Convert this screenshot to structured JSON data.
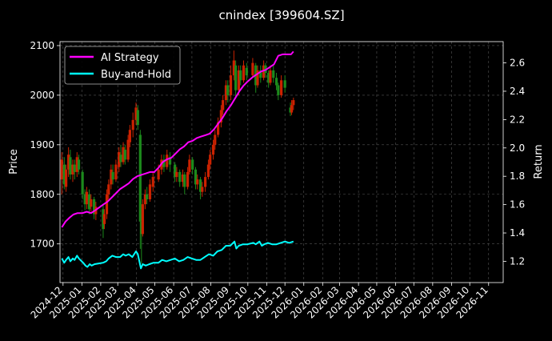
{
  "chart_data": {
    "type": "line",
    "title": "cnindex [399604.SZ]",
    "ylabel": "Price",
    "y2label": "Return",
    "grid": true,
    "legend_position": "top-left",
    "background": "#000000",
    "colors": {
      "ai_strategy": "#ff00ff",
      "buy_and_hold": "#00ffff",
      "candle_up": "#cc2200",
      "candle_down": "#1c8a1c",
      "grid": "#555555",
      "text": "#ffffff"
    },
    "xlim": [
      "2024-11-26",
      "2026-11-25"
    ],
    "ylim": [
      1622,
      2108
    ],
    "y2lim": [
      1.05,
      2.75
    ],
    "xticks": [
      "2024-12",
      "2025-01",
      "2025-02",
      "2025-03",
      "2025-04",
      "2025-05",
      "2025-06",
      "2025-07",
      "2025-08",
      "2025-09",
      "2025-10",
      "2025-11",
      "2025-12",
      "2026-01",
      "2026-02",
      "2026-03",
      "2026-04",
      "2026-05",
      "2026-06",
      "2026-07",
      "2026-08",
      "2026-09",
      "2026-10",
      "2026-11"
    ],
    "yticks": [
      1700,
      1800,
      1900,
      2000,
      2100
    ],
    "y2ticks": [
      1.2,
      1.4,
      1.6,
      1.8,
      2.0,
      2.2,
      2.4,
      2.6
    ],
    "series": [
      {
        "name": "AI Strategy",
        "axis": "right",
        "points": [
          [
            "2024-11-29",
            1.44
          ],
          [
            "2024-12-05",
            1.48
          ],
          [
            "2024-12-12",
            1.51
          ],
          [
            "2024-12-18",
            1.53
          ],
          [
            "2024-12-25",
            1.54
          ],
          [
            "2025-01-02",
            1.54
          ],
          [
            "2025-01-09",
            1.55
          ],
          [
            "2025-01-16",
            1.54
          ],
          [
            "2025-01-23",
            1.56
          ],
          [
            "2025-02-05",
            1.6
          ],
          [
            "2025-02-12",
            1.62
          ],
          [
            "2025-02-19",
            1.65
          ],
          [
            "2025-02-26",
            1.68
          ],
          [
            "2025-03-05",
            1.71
          ],
          [
            "2025-03-12",
            1.73
          ],
          [
            "2025-03-19",
            1.75
          ],
          [
            "2025-03-26",
            1.78
          ],
          [
            "2025-04-02",
            1.8
          ],
          [
            "2025-04-09",
            1.81
          ],
          [
            "2025-04-16",
            1.82
          ],
          [
            "2025-04-23",
            1.83
          ],
          [
            "2025-04-30",
            1.83
          ],
          [
            "2025-05-07",
            1.86
          ],
          [
            "2025-05-14",
            1.9
          ],
          [
            "2025-05-21",
            1.92
          ],
          [
            "2025-05-28",
            1.93
          ],
          [
            "2025-06-04",
            1.96
          ],
          [
            "2025-06-11",
            1.99
          ],
          [
            "2025-06-18",
            2.01
          ],
          [
            "2025-06-25",
            2.04
          ],
          [
            "2025-07-02",
            2.05
          ],
          [
            "2025-07-09",
            2.07
          ],
          [
            "2025-07-16",
            2.08
          ],
          [
            "2025-07-23",
            2.09
          ],
          [
            "2025-07-30",
            2.1
          ],
          [
            "2025-08-06",
            2.13
          ],
          [
            "2025-08-13",
            2.17
          ],
          [
            "2025-08-20",
            2.21
          ],
          [
            "2025-08-27",
            2.26
          ],
          [
            "2025-09-03",
            2.3
          ],
          [
            "2025-09-10",
            2.35
          ],
          [
            "2025-09-17",
            2.4
          ],
          [
            "2025-09-24",
            2.44
          ],
          [
            "2025-10-01",
            2.47
          ],
          [
            "2025-10-09",
            2.5
          ],
          [
            "2025-10-16",
            2.52
          ],
          [
            "2025-10-23",
            2.54
          ],
          [
            "2025-10-30",
            2.55
          ],
          [
            "2025-11-06",
            2.57
          ],
          [
            "2025-11-13",
            2.59
          ],
          [
            "2025-11-20",
            2.65
          ],
          [
            "2025-11-27",
            2.66
          ],
          [
            "2025-12-04",
            2.66
          ],
          [
            "2025-12-11",
            2.66
          ],
          [
            "2025-12-15",
            2.68
          ]
        ]
      },
      {
        "name": "Buy-and-Hold",
        "axis": "right",
        "points": [
          [
            "2024-11-29",
            1.22
          ],
          [
            "2024-12-03",
            1.19
          ],
          [
            "2024-12-06",
            1.21
          ],
          [
            "2024-12-10",
            1.23
          ],
          [
            "2024-12-13",
            1.2
          ],
          [
            "2024-12-17",
            1.22
          ],
          [
            "2024-12-20",
            1.21
          ],
          [
            "2024-12-24",
            1.24
          ],
          [
            "2024-12-27",
            1.22
          ],
          [
            "2025-01-03",
            1.19
          ],
          [
            "2025-01-07",
            1.17
          ],
          [
            "2025-01-10",
            1.16
          ],
          [
            "2025-01-14",
            1.18
          ],
          [
            "2025-01-17",
            1.17
          ],
          [
            "2025-01-22",
            1.18
          ],
          [
            "2025-02-05",
            1.19
          ],
          [
            "2025-02-10",
            1.2
          ],
          [
            "2025-02-14",
            1.22
          ],
          [
            "2025-02-20",
            1.24
          ],
          [
            "2025-02-26",
            1.23
          ],
          [
            "2025-03-05",
            1.23
          ],
          [
            "2025-03-10",
            1.25
          ],
          [
            "2025-03-14",
            1.24
          ],
          [
            "2025-03-19",
            1.25
          ],
          [
            "2025-03-25",
            1.23
          ],
          [
            "2025-03-31",
            1.27
          ],
          [
            "2025-04-03",
            1.25
          ],
          [
            "2025-04-08",
            1.15
          ],
          [
            "2025-04-11",
            1.18
          ],
          [
            "2025-04-16",
            1.17
          ],
          [
            "2025-04-22",
            1.18
          ],
          [
            "2025-04-29",
            1.19
          ],
          [
            "2025-05-07",
            1.19
          ],
          [
            "2025-05-13",
            1.21
          ],
          [
            "2025-05-20",
            1.2
          ],
          [
            "2025-05-27",
            1.21
          ],
          [
            "2025-06-03",
            1.22
          ],
          [
            "2025-06-10",
            1.2
          ],
          [
            "2025-06-17",
            1.21
          ],
          [
            "2025-06-24",
            1.23
          ],
          [
            "2025-07-01",
            1.22
          ],
          [
            "2025-07-08",
            1.21
          ],
          [
            "2025-07-15",
            1.21
          ],
          [
            "2025-07-22",
            1.23
          ],
          [
            "2025-07-29",
            1.25
          ],
          [
            "2025-08-05",
            1.24
          ],
          [
            "2025-08-12",
            1.27
          ],
          [
            "2025-08-19",
            1.28
          ],
          [
            "2025-08-26",
            1.31
          ],
          [
            "2025-09-02",
            1.31
          ],
          [
            "2025-09-09",
            1.34
          ],
          [
            "2025-09-12",
            1.29
          ],
          [
            "2025-09-16",
            1.31
          ],
          [
            "2025-09-23",
            1.32
          ],
          [
            "2025-09-30",
            1.32
          ],
          [
            "2025-10-10",
            1.33
          ],
          [
            "2025-10-14",
            1.32
          ],
          [
            "2025-10-20",
            1.34
          ],
          [
            "2025-10-24",
            1.31
          ],
          [
            "2025-10-28",
            1.32
          ],
          [
            "2025-11-03",
            1.33
          ],
          [
            "2025-11-10",
            1.32
          ],
          [
            "2025-11-17",
            1.32
          ],
          [
            "2025-11-24",
            1.33
          ],
          [
            "2025-12-01",
            1.34
          ],
          [
            "2025-12-08",
            1.33
          ],
          [
            "2025-12-15",
            1.34
          ]
        ]
      }
    ],
    "candles": [
      [
        "2024-11-29",
        1830,
        1870,
        1800,
        1885
      ],
      [
        "2024-12-03",
        1860,
        1820,
        1810,
        1875
      ],
      [
        "2024-12-06",
        1815,
        1850,
        1805,
        1860
      ],
      [
        "2024-12-10",
        1850,
        1880,
        1835,
        1895
      ],
      [
        "2024-12-13",
        1875,
        1840,
        1830,
        1890
      ],
      [
        "2024-12-17",
        1840,
        1860,
        1825,
        1870
      ],
      [
        "2024-12-20",
        1860,
        1845,
        1830,
        1870
      ],
      [
        "2024-12-24",
        1845,
        1875,
        1835,
        1885
      ],
      [
        "2024-12-27",
        1870,
        1850,
        1840,
        1880
      ],
      [
        "2025-01-02",
        1845,
        1800,
        1790,
        1850
      ],
      [
        "2025-01-06",
        1800,
        1780,
        1768,
        1810
      ],
      [
        "2025-01-09",
        1780,
        1805,
        1770,
        1815
      ],
      [
        "2025-01-13",
        1800,
        1770,
        1760,
        1810
      ],
      [
        "2025-01-16",
        1775,
        1790,
        1765,
        1800
      ],
      [
        "2025-01-21",
        1790,
        1760,
        1750,
        1795
      ],
      [
        "2025-01-24",
        1760,
        1775,
        1748,
        1785
      ],
      [
        "2025-02-05",
        1770,
        1730,
        1712,
        1780
      ],
      [
        "2025-02-07",
        1740,
        1760,
        1730,
        1770
      ],
      [
        "2025-02-11",
        1760,
        1800,
        1750,
        1810
      ],
      [
        "2025-02-14",
        1800,
        1820,
        1790,
        1830
      ],
      [
        "2025-02-18",
        1820,
        1850,
        1810,
        1860
      ],
      [
        "2025-02-21",
        1845,
        1830,
        1820,
        1860
      ],
      [
        "2025-02-26",
        1830,
        1860,
        1825,
        1870
      ],
      [
        "2025-03-03",
        1855,
        1885,
        1845,
        1895
      ],
      [
        "2025-03-06",
        1880,
        1865,
        1855,
        1900
      ],
      [
        "2025-03-10",
        1865,
        1895,
        1860,
        1905
      ],
      [
        "2025-03-13",
        1890,
        1870,
        1860,
        1900
      ],
      [
        "2025-03-18",
        1870,
        1910,
        1865,
        1920
      ],
      [
        "2025-03-21",
        1905,
        1930,
        1895,
        1940
      ],
      [
        "2025-03-26",
        1930,
        1950,
        1915,
        1965
      ],
      [
        "2025-03-31",
        1950,
        1975,
        1940,
        1985
      ],
      [
        "2025-04-03",
        1970,
        1940,
        1930,
        1980
      ],
      [
        "2025-04-07",
        1920,
        1745,
        1690,
        1930
      ],
      [
        "2025-04-09",
        1745,
        1720,
        1660,
        1760
      ],
      [
        "2025-04-11",
        1720,
        1780,
        1715,
        1790
      ],
      [
        "2025-04-15",
        1780,
        1800,
        1770,
        1810
      ],
      [
        "2025-04-18",
        1800,
        1790,
        1780,
        1815
      ],
      [
        "2025-04-23",
        1790,
        1820,
        1785,
        1830
      ],
      [
        "2025-04-28",
        1815,
        1835,
        1805,
        1845
      ],
      [
        "2025-05-07",
        1830,
        1850,
        1825,
        1860
      ],
      [
        "2025-05-12",
        1850,
        1870,
        1840,
        1880
      ],
      [
        "2025-05-16",
        1870,
        1855,
        1845,
        1880
      ],
      [
        "2025-05-21",
        1855,
        1880,
        1850,
        1890
      ],
      [
        "2025-05-26",
        1875,
        1860,
        1845,
        1885
      ],
      [
        "2025-06-03",
        1860,
        1835,
        1825,
        1865
      ],
      [
        "2025-06-06",
        1835,
        1845,
        1825,
        1855
      ],
      [
        "2025-06-11",
        1845,
        1825,
        1815,
        1850
      ],
      [
        "2025-06-16",
        1825,
        1840,
        1815,
        1850
      ],
      [
        "2025-06-19",
        1840,
        1815,
        1800,
        1845
      ],
      [
        "2025-06-24",
        1815,
        1845,
        1810,
        1855
      ],
      [
        "2025-06-27",
        1845,
        1870,
        1840,
        1880
      ],
      [
        "2025-07-02",
        1870,
        1850,
        1840,
        1875
      ],
      [
        "2025-07-07",
        1850,
        1820,
        1810,
        1855
      ],
      [
        "2025-07-10",
        1820,
        1830,
        1810,
        1840
      ],
      [
        "2025-07-15",
        1830,
        1805,
        1790,
        1835
      ],
      [
        "2025-07-18",
        1805,
        1815,
        1795,
        1825
      ],
      [
        "2025-07-23",
        1815,
        1835,
        1805,
        1845
      ],
      [
        "2025-07-28",
        1835,
        1860,
        1830,
        1870
      ],
      [
        "2025-07-31",
        1860,
        1880,
        1850,
        1890
      ],
      [
        "2025-08-05",
        1880,
        1900,
        1870,
        1910
      ],
      [
        "2025-08-08",
        1900,
        1920,
        1890,
        1930
      ],
      [
        "2025-08-13",
        1920,
        1945,
        1915,
        1955
      ],
      [
        "2025-08-18",
        1945,
        1970,
        1935,
        1980
      ],
      [
        "2025-08-21",
        1970,
        1990,
        1960,
        2000
      ],
      [
        "2025-08-26",
        1990,
        2020,
        1980,
        2030
      ],
      [
        "2025-08-29",
        2020,
        2000,
        1985,
        2030
      ],
      [
        "2025-09-03",
        2000,
        2040,
        1990,
        2060
      ],
      [
        "2025-09-08",
        2040,
        2070,
        2030,
        2090
      ],
      [
        "2025-09-11",
        2060,
        2010,
        1995,
        2070
      ],
      [
        "2025-09-16",
        2010,
        2050,
        2000,
        2060
      ],
      [
        "2025-09-19",
        2050,
        2030,
        2020,
        2060
      ],
      [
        "2025-09-24",
        2030,
        2060,
        2025,
        2070
      ],
      [
        "2025-09-29",
        2055,
        2040,
        2030,
        2065
      ],
      [
        "2025-10-09",
        2040,
        2065,
        2035,
        2075
      ],
      [
        "2025-10-14",
        2060,
        2020,
        2005,
        2065
      ],
      [
        "2025-10-17",
        2020,
        2050,
        2015,
        2060
      ],
      [
        "2025-10-22",
        2050,
        2035,
        2025,
        2060
      ],
      [
        "2025-10-27",
        2035,
        2060,
        2030,
        2070
      ],
      [
        "2025-10-30",
        2060,
        2045,
        2035,
        2065
      ],
      [
        "2025-11-04",
        2045,
        2025,
        2015,
        2050
      ],
      [
        "2025-11-07",
        2025,
        2050,
        2020,
        2060
      ],
      [
        "2025-11-12",
        2050,
        2035,
        2025,
        2060
      ],
      [
        "2025-11-17",
        2035,
        2020,
        2010,
        2045
      ],
      [
        "2025-11-20",
        2020,
        2000,
        1990,
        2025
      ],
      [
        "2025-11-25",
        2000,
        2030,
        1995,
        2040
      ],
      [
        "2025-12-01",
        2030,
        2015,
        2005,
        2040
      ],
      [
        "2025-12-10",
        1975,
        1965,
        1958,
        1985
      ],
      [
        "2025-12-12",
        1965,
        1980,
        1960,
        1990
      ],
      [
        "2025-12-15",
        1980,
        1990,
        1970,
        1995
      ]
    ]
  }
}
